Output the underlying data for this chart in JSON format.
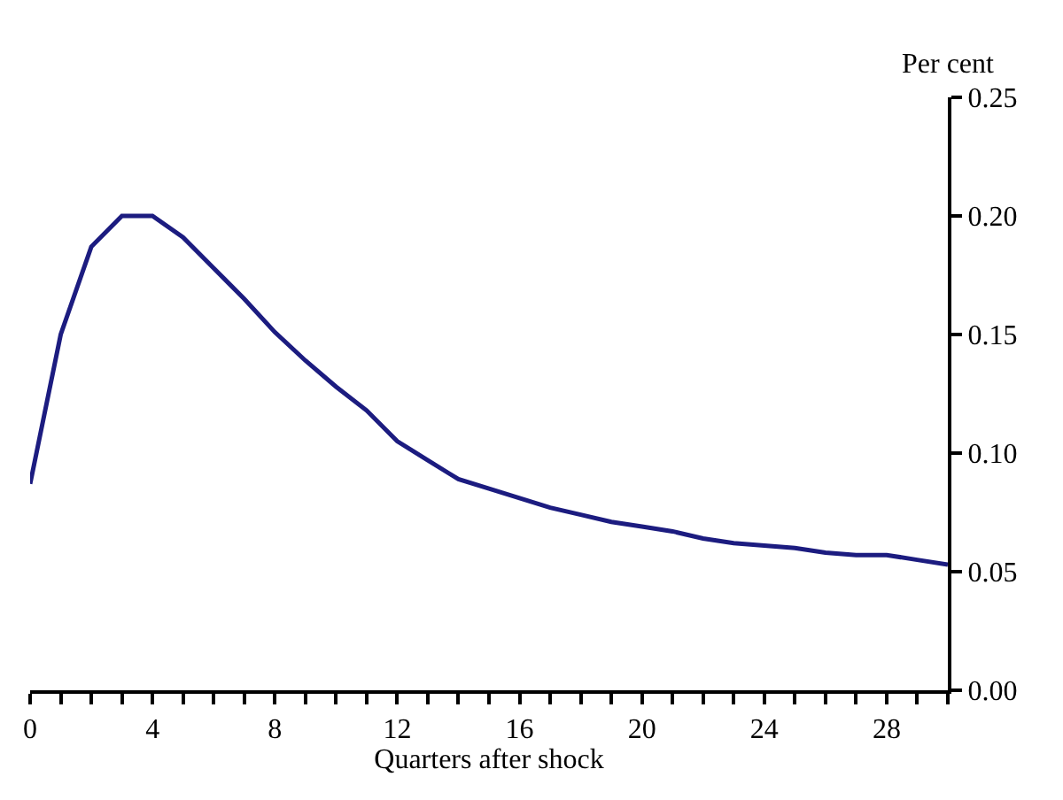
{
  "chart_data": {
    "type": "line",
    "xlabel": "Quarters after shock",
    "ylabel": "Per cent",
    "x": [
      0,
      1,
      2,
      3,
      4,
      5,
      6,
      7,
      8,
      9,
      10,
      11,
      12,
      13,
      14,
      15,
      16,
      17,
      18,
      19,
      20,
      21,
      22,
      23,
      24,
      25,
      26,
      27,
      28,
      29,
      30
    ],
    "series": [
      {
        "color": "#1c1c80",
        "values": [
          0.087,
          0.15,
          0.187,
          0.2,
          0.2,
          0.191,
          0.178,
          0.165,
          0.151,
          0.139,
          0.128,
          0.118,
          0.105,
          0.097,
          0.089,
          0.085,
          0.081,
          0.077,
          0.074,
          0.071,
          0.069,
          0.067,
          0.064,
          0.062,
          0.061,
          0.06,
          0.058,
          0.057,
          0.057,
          0.055,
          0.053
        ]
      }
    ],
    "xlim": [
      0,
      30
    ],
    "xticks": [
      0,
      {
        "value": 1,
        "label": null
      },
      {
        "value": 2,
        "label": null
      },
      {
        "value": 3,
        "label": null
      },
      4,
      {
        "value": 5,
        "label": null
      },
      {
        "value": 6,
        "label": null
      },
      {
        "value": 7,
        "label": null
      },
      8,
      {
        "value": 9,
        "label": null
      },
      {
        "value": 10,
        "label": null
      },
      {
        "value": 11,
        "label": null
      },
      12,
      {
        "value": 13,
        "label": null
      },
      {
        "value": 14,
        "label": null
      },
      {
        "value": 15,
        "label": null
      },
      16,
      {
        "value": 17,
        "label": null
      },
      {
        "value": 18,
        "label": null
      },
      {
        "value": 19,
        "label": null
      },
      20,
      {
        "value": 21,
        "label": null
      },
      {
        "value": 22,
        "label": null
      },
      {
        "value": 23,
        "label": null
      },
      24,
      {
        "value": 25,
        "label": null
      },
      {
        "value": 26,
        "label": null
      },
      {
        "value": 27,
        "label": null
      },
      28,
      {
        "value": 29,
        "label": null
      },
      {
        "value": 30,
        "label": null
      }
    ],
    "ylim": [
      0,
      0.25
    ],
    "yticks": [
      {
        "value": 0,
        "label": "0.00"
      },
      {
        "value": 0.05,
        "label": "0.05"
      },
      {
        "value": 0.1,
        "label": "0.10"
      },
      {
        "value": 0.15,
        "label": "0.15"
      },
      {
        "value": 0.2,
        "label": "0.20"
      },
      {
        "value": 0.25,
        "label": "0.25"
      }
    ],
    "grid": false,
    "legend": false,
    "marker": "none",
    "line_style": "solid"
  }
}
